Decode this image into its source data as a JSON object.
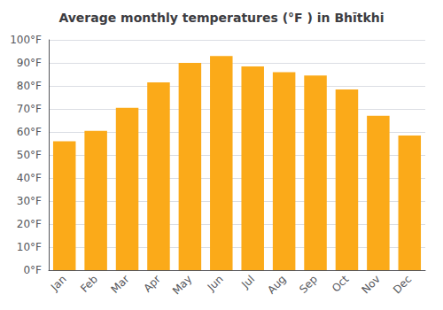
{
  "chart_data": {
    "type": "bar",
    "title": "Average monthly temperatures (°F ) in Bhītkhi",
    "categories": [
      "Jan",
      "Feb",
      "Mar",
      "Apr",
      "May",
      "Jun",
      "Jul",
      "Aug",
      "Sep",
      "Oct",
      "Nov",
      "Dec"
    ],
    "values": [
      56,
      60.5,
      70.5,
      81.5,
      90,
      93,
      88.5,
      86,
      84.5,
      78.5,
      67,
      58.5
    ],
    "color": "#FBAA19",
    "ylim": [
      0,
      100
    ],
    "yticks": [
      {
        "value": 0,
        "label": "0°F"
      },
      {
        "value": 10,
        "label": "10°F"
      },
      {
        "value": 20,
        "label": "20°F"
      },
      {
        "value": 30,
        "label": "30°F"
      },
      {
        "value": 40,
        "label": "40°F"
      },
      {
        "value": 50,
        "label": "50°F"
      },
      {
        "value": 60,
        "label": "60°F"
      },
      {
        "value": 70,
        "label": "70°F"
      },
      {
        "value": 80,
        "label": "80°F"
      },
      {
        "value": 90,
        "label": "90°F"
      },
      {
        "value": 100,
        "label": "100°F"
      }
    ],
    "grid": true
  }
}
